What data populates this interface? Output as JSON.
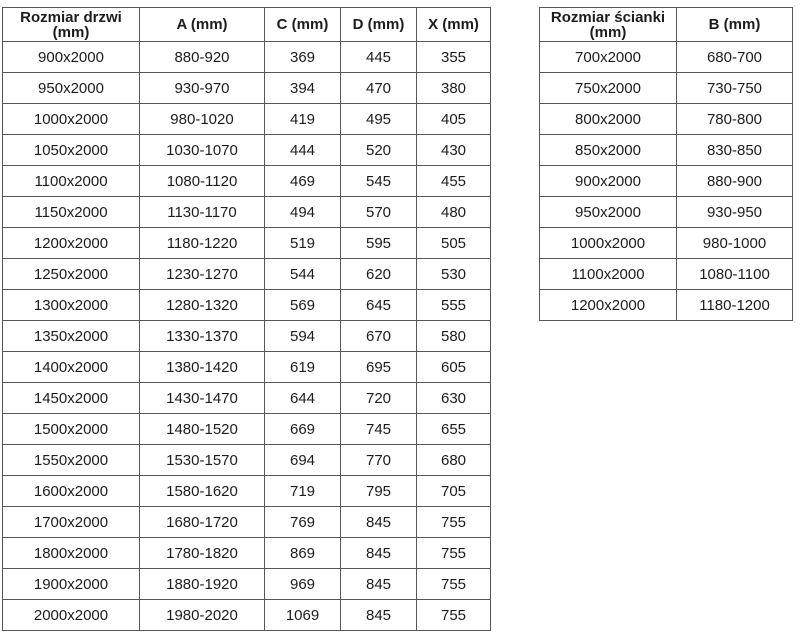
{
  "colors": {
    "background": "#ffffff",
    "border": "#555555",
    "text": "#1c1c1c"
  },
  "tables": [
    {
      "name": "door-sizes",
      "headers": [
        "Rozmiar drzwi (mm)",
        "A (mm)",
        "C (mm)",
        "D (mm)",
        "X (mm)"
      ],
      "rows": [
        [
          "900x2000",
          "880-920",
          "369",
          "445",
          "355"
        ],
        [
          "950x2000",
          "930-970",
          "394",
          "470",
          "380"
        ],
        [
          "1000x2000",
          "980-1020",
          "419",
          "495",
          "405"
        ],
        [
          "1050x2000",
          "1030-1070",
          "444",
          "520",
          "430"
        ],
        [
          "1100x2000",
          "1080-1120",
          "469",
          "545",
          "455"
        ],
        [
          "1150x2000",
          "1130-1170",
          "494",
          "570",
          "480"
        ],
        [
          "1200x2000",
          "1180-1220",
          "519",
          "595",
          "505"
        ],
        [
          "1250x2000",
          "1230-1270",
          "544",
          "620",
          "530"
        ],
        [
          "1300x2000",
          "1280-1320",
          "569",
          "645",
          "555"
        ],
        [
          "1350x2000",
          "1330-1370",
          "594",
          "670",
          "580"
        ],
        [
          "1400x2000",
          "1380-1420",
          "619",
          "695",
          "605"
        ],
        [
          "1450x2000",
          "1430-1470",
          "644",
          "720",
          "630"
        ],
        [
          "1500x2000",
          "1480-1520",
          "669",
          "745",
          "655"
        ],
        [
          "1550x2000",
          "1530-1570",
          "694",
          "770",
          "680"
        ],
        [
          "1600x2000",
          "1580-1620",
          "719",
          "795",
          "705"
        ],
        [
          "1700x2000",
          "1680-1720",
          "769",
          "845",
          "755"
        ],
        [
          "1800x2000",
          "1780-1820",
          "869",
          "845",
          "755"
        ],
        [
          "1900x2000",
          "1880-1920",
          "969",
          "845",
          "755"
        ],
        [
          "2000x2000",
          "1980-2020",
          "1069",
          "845",
          "755"
        ]
      ]
    },
    {
      "name": "wall-sizes",
      "headers": [
        "Rozmiar ścianki (mm)",
        "B (mm)"
      ],
      "rows": [
        [
          "700x2000",
          "680-700"
        ],
        [
          "750x2000",
          "730-750"
        ],
        [
          "800x2000",
          "780-800"
        ],
        [
          "850x2000",
          "830-850"
        ],
        [
          "900x2000",
          "880-900"
        ],
        [
          "950x2000",
          "930-950"
        ],
        [
          "1000x2000",
          "980-1000"
        ],
        [
          "1100x2000",
          "1080-1100"
        ],
        [
          "1200x2000",
          "1180-1200"
        ]
      ]
    }
  ]
}
